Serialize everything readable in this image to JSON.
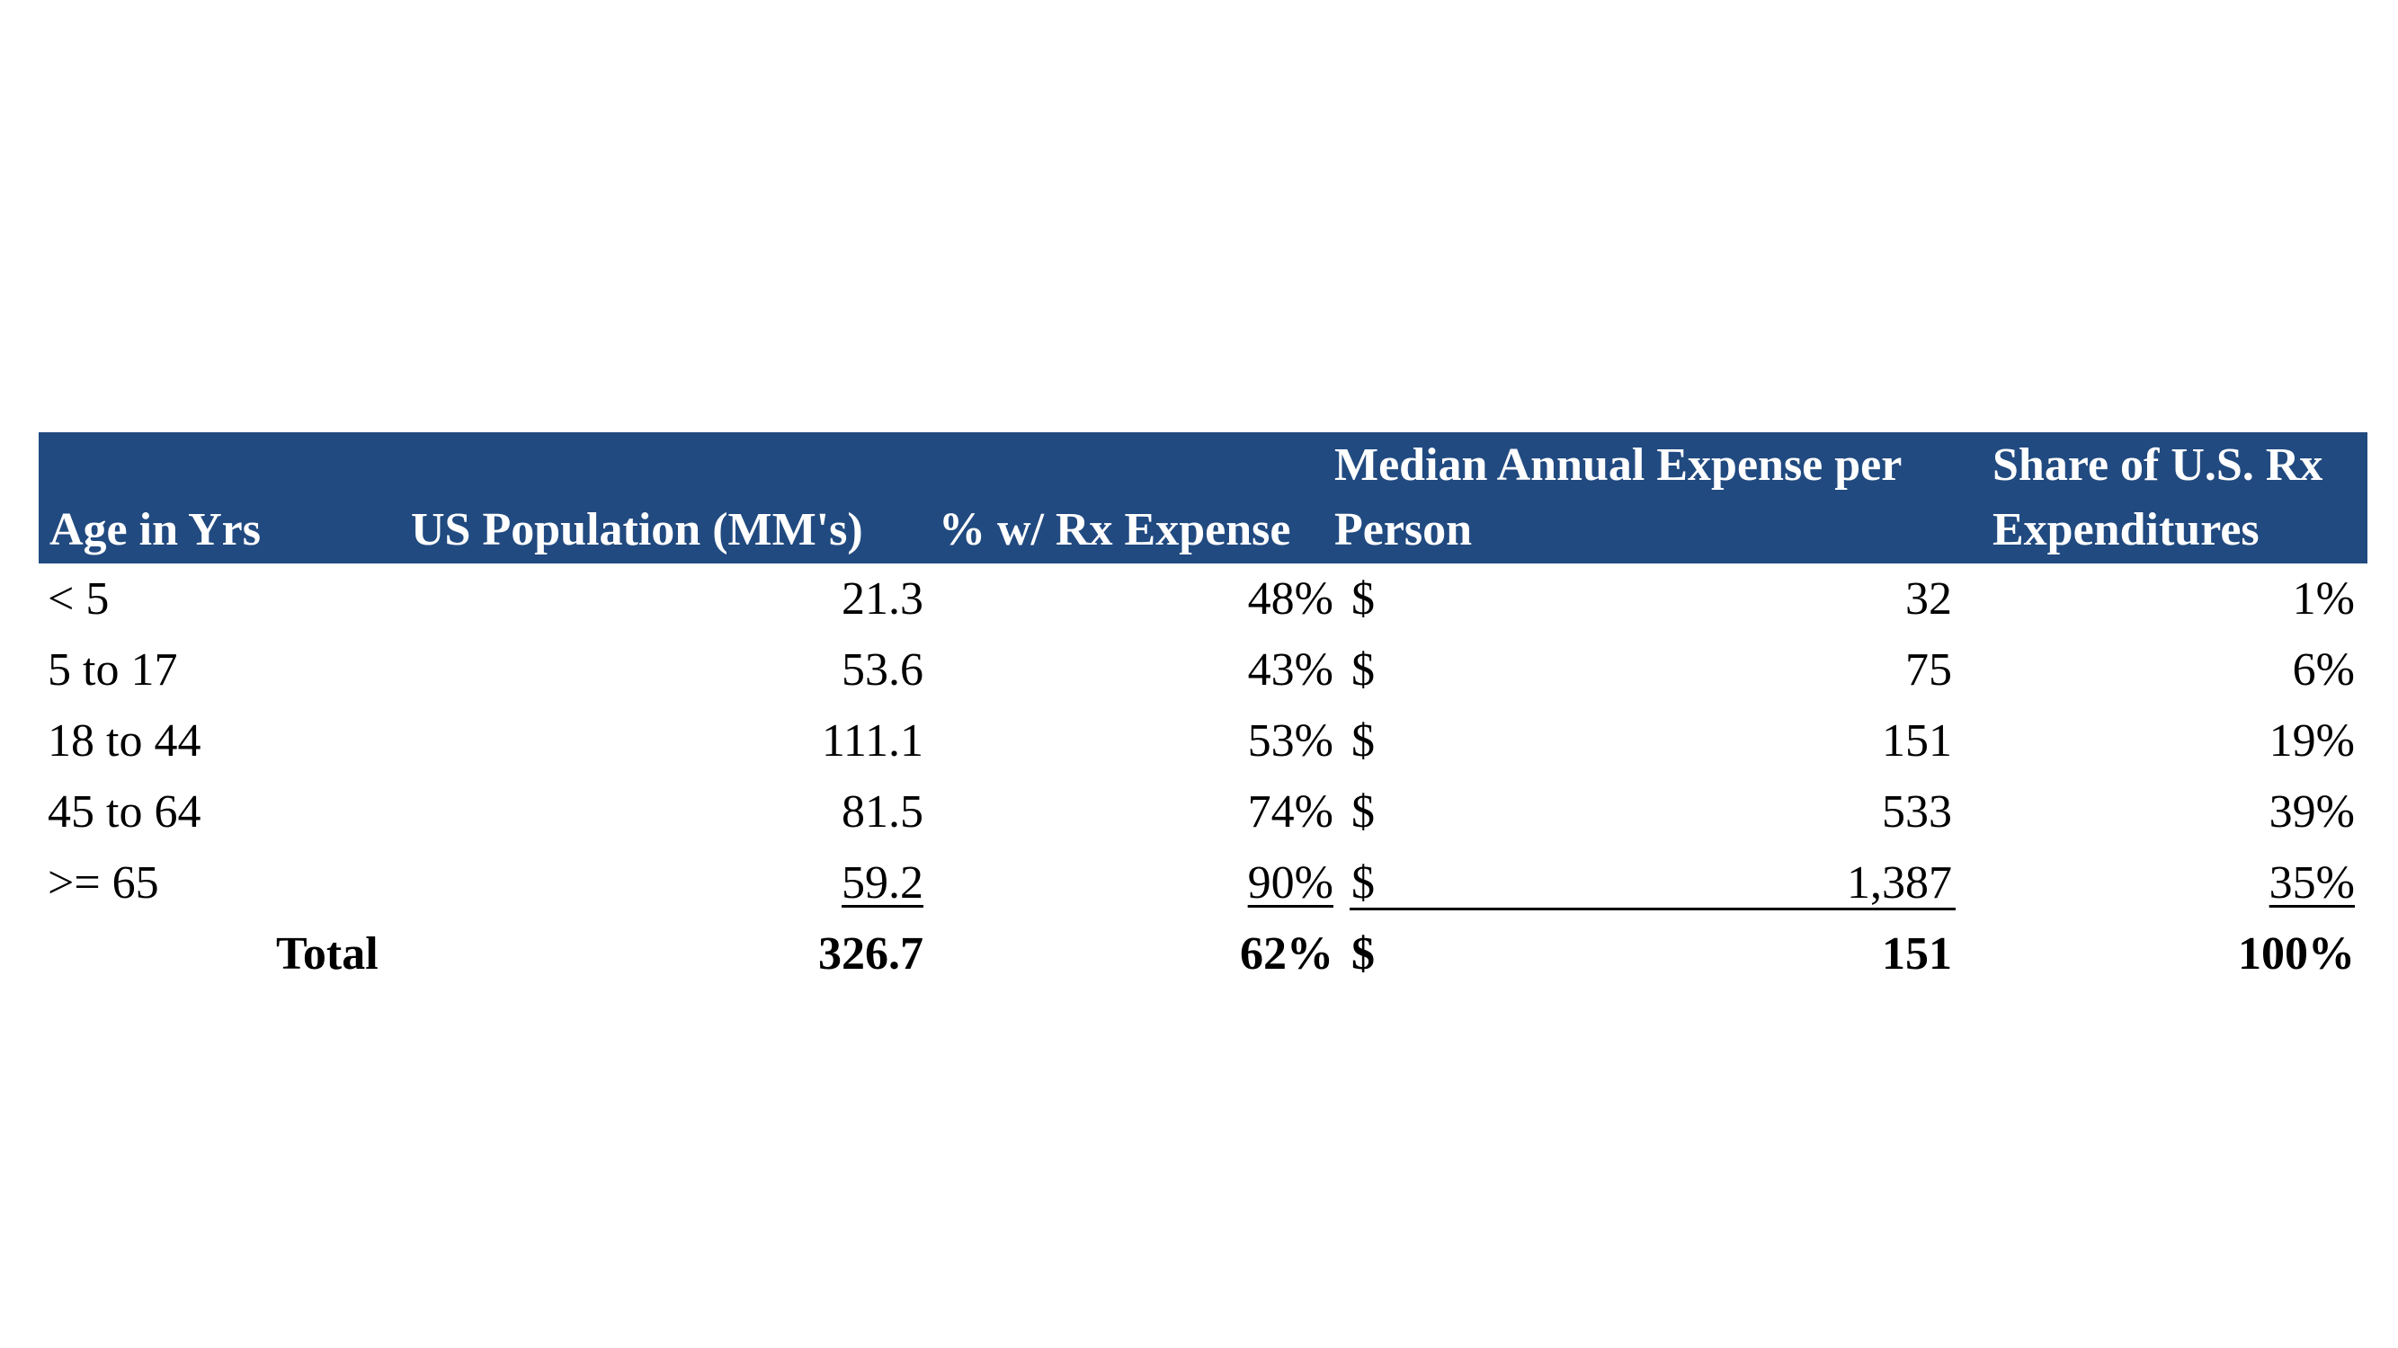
{
  "table": {
    "header": {
      "age": "Age in Yrs",
      "population": "US Population (MM's)",
      "pct_rx": "% w/ Rx Expense",
      "median_line1": "Median Annual  Expense per",
      "median_line2": "Person",
      "share_line1": "Share of U.S. Rx",
      "share_line2": "Expenditures"
    },
    "rows": [
      {
        "age": "< 5",
        "population": "21.3",
        "pct_rx": "48%",
        "currency": "$",
        "median": "32",
        "share": "1%"
      },
      {
        "age": "5 to 17",
        "population": "53.6",
        "pct_rx": "43%",
        "currency": "$",
        "median": "75",
        "share": "6%"
      },
      {
        "age": "18 to 44",
        "population": "111.1",
        "pct_rx": "53%",
        "currency": "$",
        "median": "151",
        "share": "19%"
      },
      {
        "age": "45 to 64",
        "population": "81.5",
        "pct_rx": "74%",
        "currency": "$",
        "median": "533",
        "share": "39%"
      },
      {
        "age": ">= 65",
        "population": "59.2",
        "pct_rx": "90%",
        "currency": "$",
        "median": "1,387",
        "share": "35%"
      }
    ],
    "total": {
      "label": "Total",
      "population": "326.7",
      "pct_rx": "62%",
      "currency": "$",
      "median": "151",
      "share": "100%"
    }
  }
}
